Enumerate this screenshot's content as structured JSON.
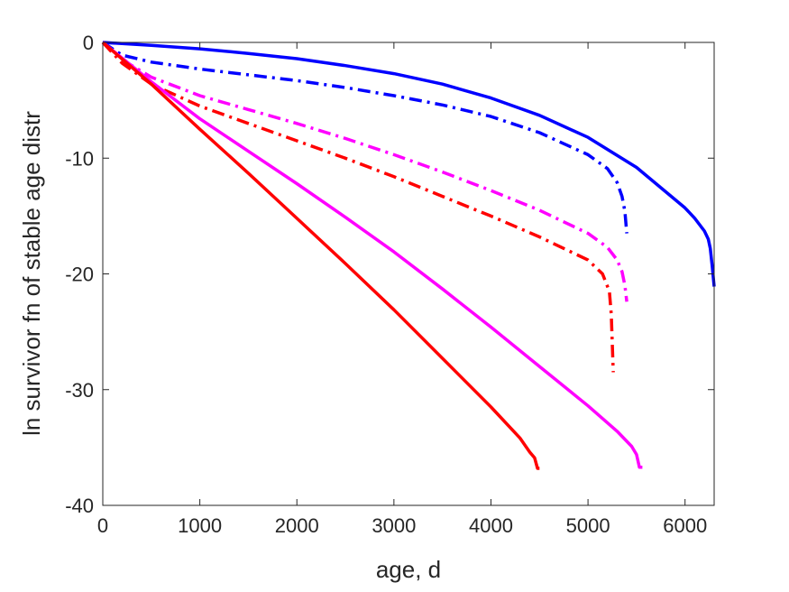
{
  "chart_data": {
    "type": "line",
    "title": "",
    "xlabel": "age, d",
    "ylabel": "ln survivor fn of stable age distr",
    "xlim": [
      0,
      6300
    ],
    "ylim": [
      -40,
      0
    ],
    "xticks": [
      0,
      1000,
      2000,
      3000,
      4000,
      5000,
      6000
    ],
    "yticks": [
      0,
      -10,
      -20,
      -30,
      -40
    ],
    "xtick_labels": [
      "0",
      "1000",
      "2000",
      "3000",
      "4000",
      "5000",
      "6000"
    ],
    "ytick_labels": [
      "0",
      "-10",
      "-20",
      "-30",
      "-40"
    ],
    "grid": false,
    "legend": "none",
    "series": [
      {
        "color": "#0000ff",
        "style": "solid",
        "x": [
          0,
          500,
          1000,
          1500,
          2000,
          2500,
          3000,
          3500,
          4000,
          4500,
          5000,
          5500,
          6000,
          6100,
          6200,
          6240,
          6260,
          6280,
          6300
        ],
        "y": [
          0,
          -0.25,
          -0.55,
          -0.95,
          -1.4,
          -2.0,
          -2.7,
          -3.6,
          -4.8,
          -6.3,
          -8.2,
          -10.8,
          -14.3,
          -15.2,
          -16.3,
          -17.0,
          -17.8,
          -19.3,
          -21.1
        ]
      },
      {
        "color": "#0000ff",
        "style": "dashdot",
        "x": [
          0,
          200,
          500,
          1000,
          1500,
          2000,
          2500,
          3000,
          3500,
          4000,
          4500,
          5000,
          5200,
          5300,
          5350,
          5380,
          5400
        ],
        "y": [
          0,
          -1.1,
          -1.7,
          -2.3,
          -2.8,
          -3.3,
          -3.9,
          -4.6,
          -5.4,
          -6.4,
          -7.8,
          -9.7,
          -10.9,
          -12.1,
          -13.3,
          -14.6,
          -16.5
        ]
      },
      {
        "color": "#ff00ff",
        "style": "dashdot",
        "x": [
          0,
          200,
          500,
          1000,
          1500,
          2000,
          2500,
          3000,
          3500,
          4000,
          4500,
          5000,
          5200,
          5300,
          5350,
          5380,
          5400
        ],
        "y": [
          0,
          -1.5,
          -3.0,
          -4.6,
          -5.8,
          -7.0,
          -8.3,
          -9.7,
          -11.2,
          -12.8,
          -14.5,
          -16.5,
          -17.7,
          -18.8,
          -19.8,
          -21.0,
          -22.4
        ]
      },
      {
        "color": "#ff0000",
        "style": "dashdot",
        "x": [
          0,
          200,
          500,
          1000,
          1500,
          2000,
          2500,
          3000,
          3500,
          4000,
          4500,
          5000,
          5150,
          5220,
          5240,
          5250,
          5260
        ],
        "y": [
          0,
          -1.8,
          -3.6,
          -5.5,
          -7.0,
          -8.5,
          -10.0,
          -11.6,
          -13.3,
          -15.0,
          -16.8,
          -18.8,
          -20.0,
          -21.5,
          -23.5,
          -26.0,
          -28.5
        ]
      },
      {
        "color": "#ff00ff",
        "style": "solid",
        "x": [
          0,
          500,
          1000,
          1500,
          2000,
          2500,
          3000,
          3500,
          4000,
          4500,
          5000,
          5300,
          5450,
          5500,
          5530,
          5560
        ],
        "y": [
          0,
          -3.4,
          -6.6,
          -9.4,
          -12.2,
          -15.1,
          -18.1,
          -21.3,
          -24.6,
          -28.0,
          -31.4,
          -33.6,
          -34.9,
          -35.6,
          -36.7,
          -36.7
        ]
      },
      {
        "color": "#ff0000",
        "style": "solid",
        "x": [
          0,
          500,
          1000,
          1500,
          2000,
          2500,
          3000,
          3500,
          4000,
          4300,
          4400,
          4450,
          4480,
          4500
        ],
        "y": [
          0,
          -3.6,
          -7.5,
          -11.3,
          -15.2,
          -19.1,
          -23.1,
          -27.3,
          -31.5,
          -34.2,
          -35.4,
          -35.9,
          -36.8,
          -36.8
        ]
      }
    ]
  }
}
